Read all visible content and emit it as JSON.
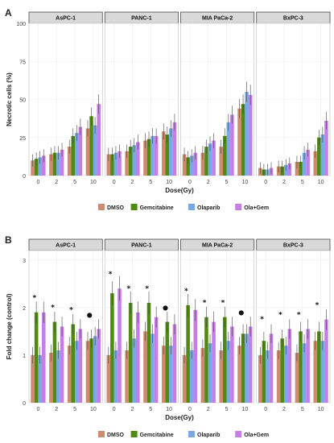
{
  "chart_data": [
    {
      "panel": "A",
      "type": "bar",
      "ylabel": "Necrotic cells (%)",
      "xlabel": "Dose(Gy)",
      "ylim": [
        0,
        100
      ],
      "yticks": [
        0,
        25,
        50,
        75,
        100
      ],
      "grid": true,
      "legend_position": "bottom",
      "categories": [
        "0",
        "2",
        "5",
        "10"
      ],
      "series_names": [
        "DMSO",
        "Gemcitabine",
        "Olaparib",
        "Ola+Gem"
      ],
      "colors": [
        "#d08b6f",
        "#4e8a14",
        "#7aa9e8",
        "#c77de6"
      ],
      "facets": [
        {
          "title": "AsPC-1",
          "values": [
            [
              10,
              14,
              19,
              31
            ],
            [
              11,
              15,
              26,
              39
            ],
            [
              12,
              15,
              28,
              33
            ],
            [
              13,
              17,
              32,
              47
            ]
          ]
        },
        {
          "title": "PANC-1",
          "values": [
            [
              14,
              16,
              23,
              29
            ],
            [
              14,
              19,
              24,
              27
            ],
            [
              15,
              20,
              26,
              31
            ],
            [
              16,
              22,
              26,
              35
            ]
          ]
        },
        {
          "title": "MIA PaCa-2",
          "values": [
            [
              14,
              15,
              19,
              44
            ],
            [
              12,
              19,
              26,
              47
            ],
            [
              13,
              21,
              35,
              55
            ],
            [
              15,
              23,
              40,
              53
            ]
          ]
        },
        {
          "title": "BxPC-3",
          "values": [
            [
              5,
              6,
              9,
              16
            ],
            [
              4,
              6,
              9,
              25
            ],
            [
              4,
              7,
              15,
              27
            ],
            [
              5,
              8,
              17,
              36
            ]
          ]
        }
      ]
    },
    {
      "panel": "B",
      "type": "bar",
      "ylabel": "Fold change (control)",
      "xlabel": "Dose(Gy)",
      "ylim": [
        0,
        3.2
      ],
      "yticks": [
        0,
        1,
        2,
        3
      ],
      "grid": true,
      "legend_position": "bottom",
      "categories": [
        "0",
        "2",
        "5",
        "10"
      ],
      "series_names": [
        "DMSO",
        "Gemcitabine",
        "Olaparib",
        "Ola+Gem"
      ],
      "colors": [
        "#d08b6f",
        "#4e8a14",
        "#7aa9e8",
        "#c77de6"
      ],
      "facets": [
        {
          "title": "AsPC-1",
          "values": [
            [
              1.0,
              1.05,
              1.2,
              1.3
            ],
            [
              1.9,
              1.7,
              1.65,
              1.35
            ],
            [
              1.0,
              1.1,
              1.3,
              1.4
            ],
            [
              1.9,
              1.6,
              1.55,
              1.55
            ]
          ],
          "significance": [
            "*",
            "*",
            "*",
            "●"
          ]
        },
        {
          "title": "PANC-1",
          "values": [
            [
              1.0,
              1.1,
              1.5,
              1.2
            ],
            [
              2.3,
              2.1,
              2.1,
              1.7
            ],
            [
              1.1,
              1.35,
              1.45,
              1.2
            ],
            [
              2.4,
              1.9,
              1.8,
              1.65
            ]
          ],
          "significance": [
            "*",
            "*",
            "*",
            "●"
          ]
        },
        {
          "title": "MIA PaCa-2",
          "values": [
            [
              1.0,
              1.15,
              1.1,
              1.2
            ],
            [
              2.05,
              1.8,
              1.8,
              1.45
            ],
            [
              1.1,
              1.25,
              1.3,
              1.45
            ],
            [
              1.95,
              1.7,
              1.6,
              1.6
            ]
          ],
          "significance": [
            "*",
            "*",
            "*",
            "●"
          ]
        },
        {
          "title": "BxPC-3",
          "values": [
            [
              1.0,
              1.1,
              1.05,
              1.3
            ],
            [
              1.3,
              1.35,
              1.5,
              1.5
            ],
            [
              1.1,
              1.2,
              1.25,
              1.3
            ],
            [
              1.45,
              1.55,
              1.55,
              1.75
            ]
          ],
          "significance": [
            "*",
            "*",
            "*",
            "*"
          ]
        }
      ]
    }
  ]
}
